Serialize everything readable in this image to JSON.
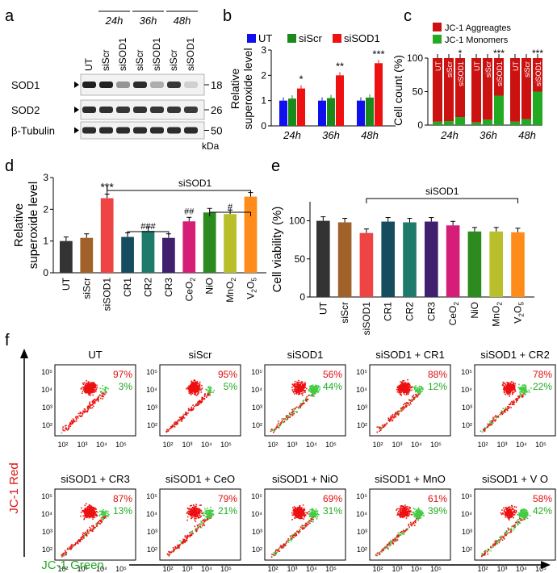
{
  "panel_labels": {
    "a": "a",
    "b": "b",
    "c": "c",
    "d": "d",
    "e": "e",
    "f": "f"
  },
  "blot": {
    "time_labels": [
      "24h",
      "36h",
      "48h"
    ],
    "lane_labels": [
      "UT",
      "siScr",
      "siSOD1",
      "siScr",
      "siSOD1",
      "siScr",
      "siSOD1"
    ],
    "band_labels": [
      "SOD1",
      "SOD2",
      "β-Tubulin"
    ],
    "mw_labels": [
      "18",
      "26",
      "50"
    ],
    "mw_unit": "kDa",
    "band_intensity": [
      [
        0.95,
        0.95,
        0.45,
        0.9,
        0.35,
        0.85,
        0.2
      ],
      [
        0.9,
        0.88,
        0.85,
        0.87,
        0.86,
        0.85,
        0.84
      ],
      [
        0.9,
        0.9,
        0.9,
        0.9,
        0.9,
        0.9,
        0.9
      ]
    ]
  },
  "chart_data": [
    {
      "id": "b",
      "type": "bar",
      "ylabel": "Relative superoxide level",
      "categories": [
        "24h",
        "36h",
        "48h"
      ],
      "series": [
        {
          "name": "UT",
          "color": "#1010ee",
          "values": [
            1.0,
            1.0,
            1.0
          ]
        },
        {
          "name": "siScr",
          "color": "#1a8a1a",
          "values": [
            1.08,
            1.1,
            1.12
          ]
        },
        {
          "name": "siSOD1",
          "color": "#ee1111",
          "values": [
            1.48,
            2.0,
            2.48
          ]
        }
      ],
      "ylim": [
        0,
        3
      ],
      "yticks": [
        "0",
        "1",
        "2",
        "3"
      ],
      "significance": [
        "*",
        "**",
        "***"
      ]
    },
    {
      "id": "c",
      "type": "bar",
      "ylabel": "Cell count (%)",
      "legend": [
        "JC-1 Aggreagtes",
        "JC-1 Monomers"
      ],
      "colors": {
        "aggregates": "#cc1111",
        "monomers": "#22aa22"
      },
      "categories": [
        "24h",
        "36h",
        "48h"
      ],
      "bar_labels": [
        "UT",
        "siScr",
        "siSOD1",
        "UT",
        "siScr",
        "siSOD1",
        "UT",
        "siScr",
        "siSOD1"
      ],
      "monomers": [
        5,
        6,
        12,
        4,
        8,
        44,
        5,
        9,
        50
      ],
      "ylim": [
        0,
        100
      ],
      "yticks": [
        "0",
        "50",
        "100"
      ],
      "significance": [
        "*",
        "***",
        "***"
      ]
    },
    {
      "id": "d",
      "type": "bar",
      "ylabel": "Relative superoxide level",
      "categories": [
        "UT",
        "siScr",
        "siSOD1",
        "CR1",
        "CR2",
        "CR3",
        "CeO",
        "NiO",
        "MnO",
        "V O"
      ],
      "values": [
        1.0,
        1.1,
        2.35,
        1.13,
        1.32,
        1.1,
        1.62,
        1.9,
        1.85,
        2.4
      ],
      "colors": [
        "#333333",
        "#a0612a",
        "#ee4444",
        "#164d5e",
        "#1e7a6a",
        "#3f1f6e",
        "#d41e78",
        "#2d8a1e",
        "#b8bf2a",
        "#ff8c1a"
      ],
      "ylim": [
        0,
        3
      ],
      "yticks": [
        "0",
        "1",
        "2",
        "3"
      ],
      "bracket_label": "siSOD1",
      "significance": [
        "***",
        "###",
        "##",
        "#"
      ]
    },
    {
      "id": "e",
      "type": "bar",
      "ylabel": "Cell viability (%)",
      "categories": [
        "UT",
        "siScr",
        "siSOD1",
        "CR1",
        "CR2",
        "CR3",
        "CeO",
        "NiO",
        "MnO",
        "V O"
      ],
      "values": [
        100,
        98,
        84,
        99,
        98,
        99,
        94,
        86,
        86,
        85
      ],
      "colors": [
        "#333333",
        "#a0612a",
        "#ee4444",
        "#164d5e",
        "#1e7a6a",
        "#3f1f6e",
        "#d41e78",
        "#2d8a1e",
        "#b8bf2a",
        "#ff8c1a"
      ],
      "ylim": [
        0,
        125
      ],
      "yticks": [
        "0",
        "50",
        "100"
      ],
      "bracket_label": "siSOD1"
    },
    {
      "id": "f",
      "type": "scatter",
      "ylabel": "JC-1 Red",
      "xlabel": "JC-1 Green",
      "tick_labels": [
        "10²",
        "10³",
        "10⁴",
        "10⁵"
      ],
      "plots": [
        {
          "title": "UT",
          "red": "97%",
          "green": "3%"
        },
        {
          "title": "siScr",
          "red": "95%",
          "green": "5%"
        },
        {
          "title": "siSOD1",
          "red": "56%",
          "green": "44%"
        },
        {
          "title": "siSOD1 + CR1",
          "red": "88%",
          "green": "12%"
        },
        {
          "title": "siSOD1 + CR2",
          "red": "78%",
          "green": "22%"
        },
        {
          "title": "siSOD1 + CR3",
          "red": "87%",
          "green": "13%"
        },
        {
          "title": "siSOD1 + CeO",
          "red": "79%",
          "green": "21%"
        },
        {
          "title": "siSOD1 + NiO",
          "red": "69%",
          "green": "31%"
        },
        {
          "title": "siSOD1 + MnO",
          "red": "61%",
          "green": "39%"
        },
        {
          "title": "siSOD1 + V O",
          "red": "58%",
          "green": "42%"
        }
      ]
    }
  ],
  "subscripts": {
    "CeO": "2",
    "MnO": "2",
    "V": "2",
    "O": "5"
  }
}
